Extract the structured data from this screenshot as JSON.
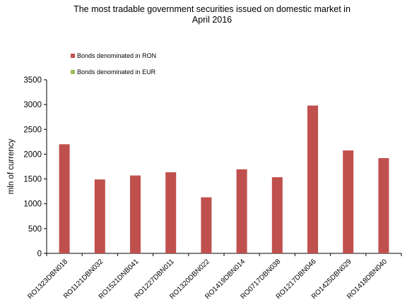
{
  "chart_data": {
    "type": "bar",
    "title": "The most  tradable government securities issued on domestic market in\nApril 2016",
    "xlabel": "",
    "ylabel": "mln of currency",
    "ylim": [
      0,
      3500
    ],
    "yticks": [
      0,
      500,
      1000,
      1500,
      2000,
      2500,
      3000,
      3500
    ],
    "grid": false,
    "legend_position": "top-left",
    "categories": [
      "RO1323DBN018",
      "RO1121DBN032",
      "RO1521DNB041",
      "RO1227DBN011",
      "RO1320DBN022",
      "RO1419DBN014",
      "RO0717DBN038",
      "RO1217DBN046",
      "RO1425DBN029",
      "RO1418DBN040"
    ],
    "series": [
      {
        "name": "Bonds denominated in RON",
        "color": "#c0504d",
        "values": [
          2200,
          1490,
          1570,
          1635,
          1130,
          1695,
          1535,
          2980,
          2075,
          1920
        ]
      },
      {
        "name": "Bonds denominated in EUR",
        "color": "#9bbb59",
        "values": [
          0,
          0,
          0,
          0,
          0,
          0,
          0,
          0,
          0,
          0
        ]
      }
    ]
  }
}
